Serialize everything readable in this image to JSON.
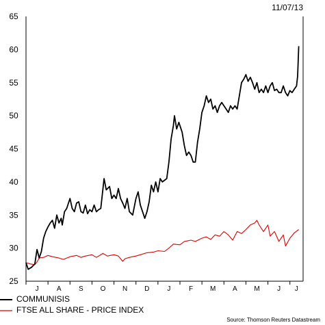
{
  "chart_data": {
    "type": "line",
    "date": "11/07/13",
    "source": "Source: Thomson Reuters Datastream",
    "yticks": [
      25,
      30,
      35,
      40,
      45,
      50,
      55,
      60,
      65
    ],
    "ylim": [
      25,
      65
    ],
    "xlim": [
      0,
      12.6
    ],
    "months": [
      {
        "label": "J",
        "x": 0.5
      },
      {
        "label": "A",
        "x": 1.5
      },
      {
        "label": "S",
        "x": 2.5
      },
      {
        "label": "O",
        "x": 3.5
      },
      {
        "label": "N",
        "x": 4.5
      },
      {
        "label": "D",
        "x": 5.5
      },
      {
        "label": "J",
        "x": 6.5
      },
      {
        "label": "F",
        "x": 7.5
      },
      {
        "label": "M",
        "x": 8.5
      },
      {
        "label": "A",
        "x": 9.5
      },
      {
        "label": "M",
        "x": 10.5
      },
      {
        "label": "J",
        "x": 11.5
      },
      {
        "label": "J",
        "x": 12.3
      }
    ],
    "series": [
      {
        "name": "COMMUNISIS",
        "color": "#000000",
        "points": [
          [
            0.0,
            27.8
          ],
          [
            0.1,
            26.8
          ],
          [
            0.25,
            27.1
          ],
          [
            0.4,
            27.6
          ],
          [
            0.5,
            29.8
          ],
          [
            0.6,
            28.5
          ],
          [
            0.7,
            29.5
          ],
          [
            0.8,
            31.5
          ],
          [
            0.9,
            32.5
          ],
          [
            1.0,
            33.2
          ],
          [
            1.1,
            33.8
          ],
          [
            1.2,
            34.2
          ],
          [
            1.3,
            33.0
          ],
          [
            1.4,
            35.0
          ],
          [
            1.5,
            33.8
          ],
          [
            1.6,
            34.5
          ],
          [
            1.65,
            33.5
          ],
          [
            1.75,
            35.5
          ],
          [
            1.85,
            36.0
          ],
          [
            2.0,
            37.5
          ],
          [
            2.1,
            36.0
          ],
          [
            2.2,
            35.5
          ],
          [
            2.3,
            36.8
          ],
          [
            2.4,
            37.0
          ],
          [
            2.5,
            35.5
          ],
          [
            2.6,
            35.3
          ],
          [
            2.7,
            36.5
          ],
          [
            2.8,
            35.2
          ],
          [
            2.9,
            35.8
          ],
          [
            3.0,
            35.5
          ],
          [
            3.1,
            36.5
          ],
          [
            3.2,
            35.5
          ],
          [
            3.3,
            35.8
          ],
          [
            3.4,
            36.0
          ],
          [
            3.55,
            40.5
          ],
          [
            3.65,
            38.8
          ],
          [
            3.8,
            39.3
          ],
          [
            3.9,
            37.5
          ],
          [
            4.0,
            38.0
          ],
          [
            4.1,
            37.5
          ],
          [
            4.2,
            39.0
          ],
          [
            4.3,
            37.5
          ],
          [
            4.4,
            36.8
          ],
          [
            4.5,
            36.0
          ],
          [
            4.6,
            37.5
          ],
          [
            4.7,
            35.5
          ],
          [
            4.85,
            35.0
          ],
          [
            5.0,
            37.5
          ],
          [
            5.1,
            38.5
          ],
          [
            5.2,
            36.5
          ],
          [
            5.3,
            35.5
          ],
          [
            5.4,
            34.5
          ],
          [
            5.5,
            35.5
          ],
          [
            5.6,
            37.0
          ],
          [
            5.7,
            39.5
          ],
          [
            5.8,
            38.5
          ],
          [
            5.9,
            40.0
          ],
          [
            6.0,
            38.5
          ],
          [
            6.1,
            40.5
          ],
          [
            6.2,
            40.0
          ],
          [
            6.4,
            40.5
          ],
          [
            6.5,
            43.0
          ],
          [
            6.6,
            46.5
          ],
          [
            6.7,
            48.5
          ],
          [
            6.75,
            50.0
          ],
          [
            6.85,
            48.0
          ],
          [
            6.95,
            49.0
          ],
          [
            7.1,
            47.5
          ],
          [
            7.2,
            45.5
          ],
          [
            7.3,
            44.0
          ],
          [
            7.4,
            44.5
          ],
          [
            7.5,
            44.0
          ],
          [
            7.6,
            43.0
          ],
          [
            7.7,
            43.0
          ],
          [
            7.8,
            46.0
          ],
          [
            7.9,
            48.0
          ],
          [
            8.0,
            50.5
          ],
          [
            8.1,
            51.5
          ],
          [
            8.2,
            53.0
          ],
          [
            8.3,
            52.0
          ],
          [
            8.4,
            52.5
          ],
          [
            8.5,
            51.0
          ],
          [
            8.6,
            51.5
          ],
          [
            8.7,
            50.5
          ],
          [
            8.8,
            51.5
          ],
          [
            8.9,
            52.0
          ],
          [
            9.0,
            51.5
          ],
          [
            9.1,
            51.0
          ],
          [
            9.2,
            50.5
          ],
          [
            9.3,
            51.5
          ],
          [
            9.4,
            51.0
          ],
          [
            9.5,
            51.5
          ],
          [
            9.6,
            51.0
          ],
          [
            9.7,
            53.0
          ],
          [
            9.8,
            55.0
          ],
          [
            9.9,
            55.5
          ],
          [
            10.0,
            56.2
          ],
          [
            10.1,
            55.2
          ],
          [
            10.2,
            55.8
          ],
          [
            10.3,
            55.0
          ],
          [
            10.4,
            54.0
          ],
          [
            10.5,
            55.0
          ],
          [
            10.6,
            53.5
          ],
          [
            10.7,
            54.0
          ],
          [
            10.8,
            53.5
          ],
          [
            10.9,
            54.5
          ],
          [
            11.0,
            53.5
          ],
          [
            11.1,
            54.5
          ],
          [
            11.2,
            55.0
          ],
          [
            11.3,
            53.8
          ],
          [
            11.4,
            54.0
          ],
          [
            11.5,
            53.5
          ],
          [
            11.6,
            53.5
          ],
          [
            11.7,
            54.5
          ],
          [
            11.8,
            53.5
          ],
          [
            11.9,
            53.0
          ],
          [
            12.0,
            53.8
          ],
          [
            12.1,
            53.5
          ],
          [
            12.2,
            54.0
          ],
          [
            12.3,
            54.5
          ],
          [
            12.35,
            56.0
          ],
          [
            12.4,
            60.5
          ]
        ]
      },
      {
        "name": "FTSE ALL SHARE - PRICE INDEX",
        "color": "#e00000",
        "points": [
          [
            0.0,
            27.8
          ],
          [
            0.2,
            27.6
          ],
          [
            0.4,
            27.5
          ],
          [
            0.5,
            27.9
          ],
          [
            0.6,
            28.5
          ],
          [
            0.8,
            28.6
          ],
          [
            1.0,
            28.9
          ],
          [
            1.2,
            28.7
          ],
          [
            1.5,
            28.5
          ],
          [
            1.7,
            28.3
          ],
          [
            2.0,
            28.7
          ],
          [
            2.3,
            28.9
          ],
          [
            2.5,
            28.6
          ],
          [
            2.7,
            28.8
          ],
          [
            3.0,
            29.0
          ],
          [
            3.2,
            28.6
          ],
          [
            3.5,
            29.2
          ],
          [
            3.7,
            28.8
          ],
          [
            4.0,
            29.0
          ],
          [
            4.2,
            28.8
          ],
          [
            4.4,
            28.0
          ],
          [
            4.5,
            28.4
          ],
          [
            4.7,
            28.6
          ],
          [
            5.0,
            28.8
          ],
          [
            5.2,
            29.0
          ],
          [
            5.5,
            29.3
          ],
          [
            5.8,
            29.4
          ],
          [
            6.0,
            29.6
          ],
          [
            6.3,
            29.5
          ],
          [
            6.5,
            30.0
          ],
          [
            6.7,
            30.6
          ],
          [
            7.0,
            30.5
          ],
          [
            7.2,
            31.0
          ],
          [
            7.5,
            31.2
          ],
          [
            7.7,
            31.0
          ],
          [
            8.0,
            31.5
          ],
          [
            8.2,
            31.7
          ],
          [
            8.4,
            31.3
          ],
          [
            8.6,
            32.0
          ],
          [
            8.8,
            31.8
          ],
          [
            9.0,
            32.5
          ],
          [
            9.2,
            32.0
          ],
          [
            9.4,
            31.2
          ],
          [
            9.6,
            32.5
          ],
          [
            9.8,
            32.2
          ],
          [
            10.0,
            32.8
          ],
          [
            10.2,
            33.5
          ],
          [
            10.4,
            33.8
          ],
          [
            10.5,
            34.2
          ],
          [
            10.6,
            33.5
          ],
          [
            10.8,
            32.5
          ],
          [
            11.0,
            33.5
          ],
          [
            11.1,
            31.8
          ],
          [
            11.3,
            32.5
          ],
          [
            11.5,
            31.0
          ],
          [
            11.7,
            32.0
          ],
          [
            11.8,
            30.3
          ],
          [
            12.0,
            31.5
          ],
          [
            12.2,
            32.3
          ],
          [
            12.4,
            32.8
          ]
        ]
      }
    ]
  }
}
